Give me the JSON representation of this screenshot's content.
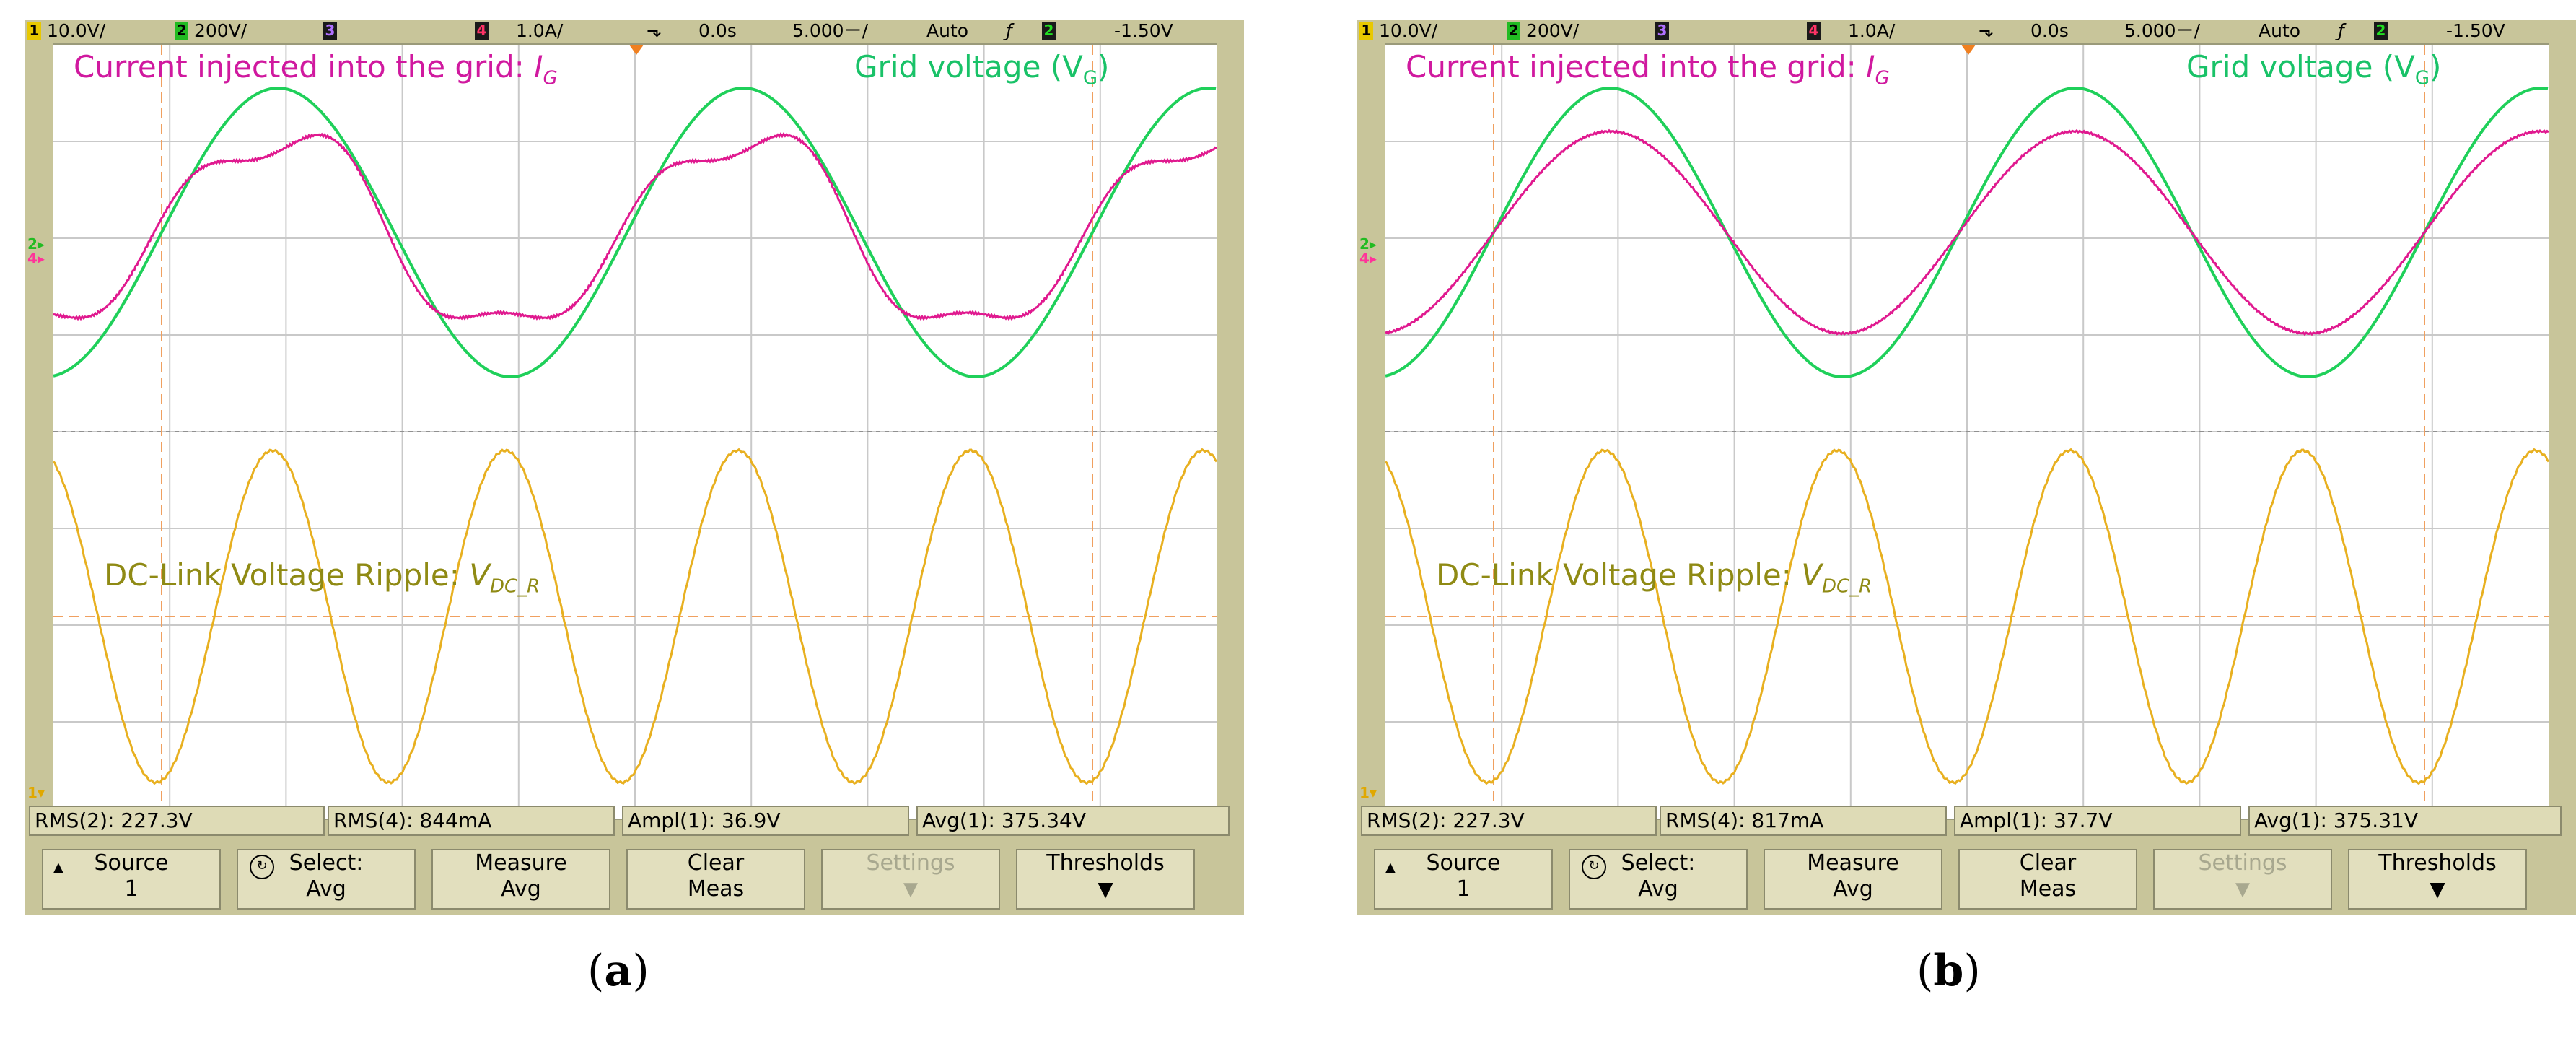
{
  "panels": [
    {
      "caption": "(a)",
      "caption_bold": "a",
      "topbar": {
        "ch1": "1",
        "ch1_scale": "10.0V/",
        "ch2": "2",
        "ch2_scale": "200V/",
        "ch3": "3",
        "ch4": "4",
        "ch4_scale": "1.0A/",
        "time_pos": "0.0s",
        "time_scale": "5.000ㄧ/",
        "trigger_mode": "Auto",
        "trigger_ch": "2",
        "trigger_level": "-1.50V"
      },
      "labels": {
        "current": "Current injected into the grid: ",
        "current_sym": "I",
        "current_sub": "G",
        "voltage": "Grid voltage (V",
        "voltage_sub": "G",
        "voltage_end": ")",
        "ripple": "DC-Link Voltage Ripple: ",
        "ripple_sym": "V",
        "ripple_sub": "DC_R"
      },
      "measurements": [
        "RMS(2): 227.3V",
        "RMS(4): 844mA",
        "Ampl(1): 36.9V",
        "Avg(1): 375.34V"
      ],
      "softkeys": [
        {
          "l1": "Source",
          "l2": "1"
        },
        {
          "l1": "Select:",
          "l2": "Avg"
        },
        {
          "l1": "Measure",
          "l2": "Avg"
        },
        {
          "l1": "Clear",
          "l2": "Meas"
        },
        {
          "l1": "Settings",
          "l2": ""
        },
        {
          "l1": "Thresholds",
          "l2": ""
        }
      ],
      "current_shape": "distorted",
      "colors": {
        "current": "#e0198f",
        "voltage": "#1fd05a",
        "ripple": "#e8b020"
      }
    },
    {
      "caption": "(b)",
      "caption_bold": "b",
      "topbar": {
        "ch1": "1",
        "ch1_scale": "10.0V/",
        "ch2": "2",
        "ch2_scale": "200V/",
        "ch3": "3",
        "ch4": "4",
        "ch4_scale": "1.0A/",
        "time_pos": "0.0s",
        "time_scale": "5.000ㄧ/",
        "trigger_mode": "Auto",
        "trigger_ch": "2",
        "trigger_level": "-1.50V"
      },
      "labels": {
        "current": "Current injected into the grid: ",
        "current_sym": "I",
        "current_sub": "G",
        "voltage": "Grid voltage (V",
        "voltage_sub": "G",
        "voltage_end": ")",
        "ripple": "DC-Link Voltage Ripple: ",
        "ripple_sym": "V",
        "ripple_sub": "DC_R"
      },
      "measurements": [
        "RMS(2): 227.3V",
        "RMS(4): 817mA",
        "Ampl(1): 37.7V",
        "Avg(1): 375.31V"
      ],
      "softkeys": [
        {
          "l1": "Source",
          "l2": "1"
        },
        {
          "l1": "Select:",
          "l2": "Avg"
        },
        {
          "l1": "Measure",
          "l2": "Avg"
        },
        {
          "l1": "Clear",
          "l2": "Meas"
        },
        {
          "l1": "Settings",
          "l2": ""
        },
        {
          "l1": "Thresholds",
          "l2": ""
        }
      ],
      "current_shape": "sinusoidal",
      "colors": {
        "current": "#e0198f",
        "voltage": "#1fd05a",
        "ripple": "#e8b020"
      }
    }
  ]
}
